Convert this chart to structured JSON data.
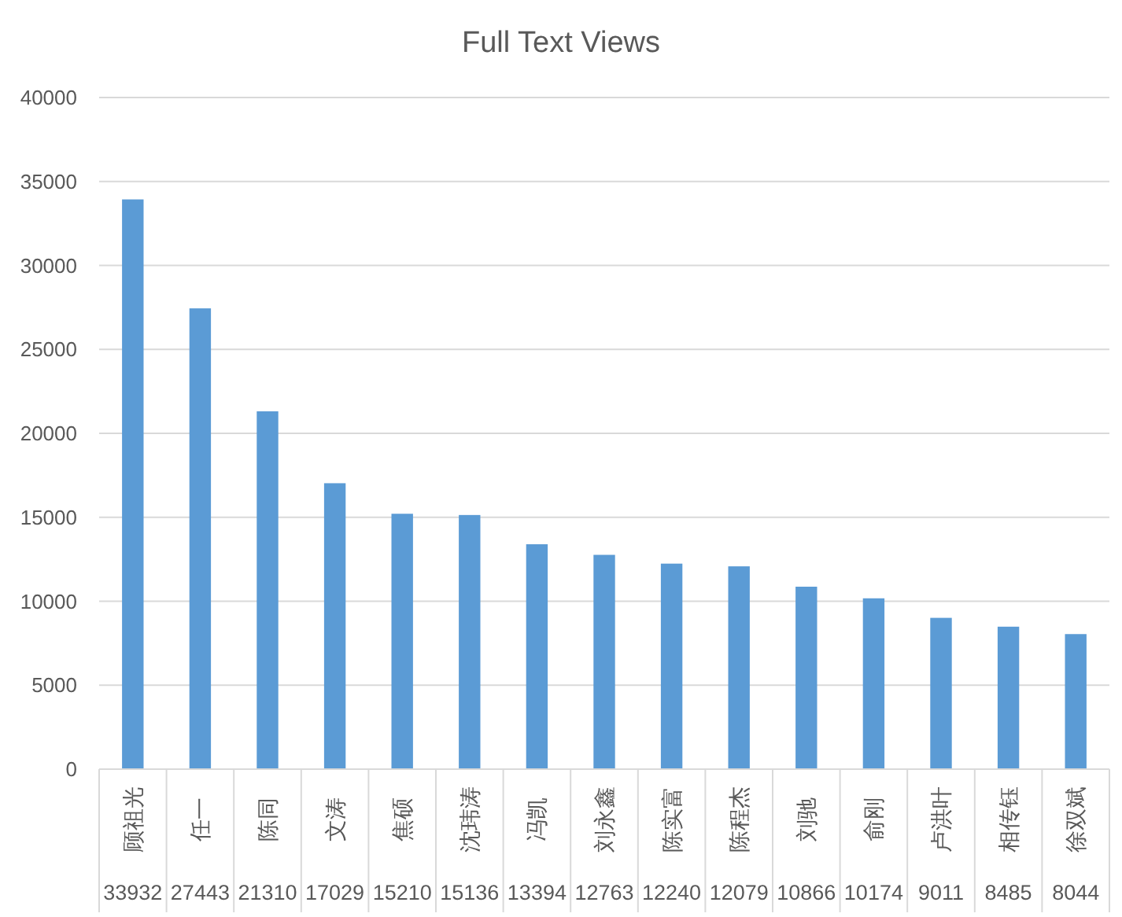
{
  "chart_data": {
    "type": "bar",
    "title": "Full Text Views",
    "categories": [
      "顾祖光",
      "任一",
      "陈同",
      "文涛",
      "焦硕",
      "沈玮涛",
      "冯凯",
      "刘永鑫",
      "陈实富",
      "陈程杰",
      "刘驰",
      "俞刚",
      "卢洪叶",
      "相传钰",
      "徐双斌"
    ],
    "values": [
      33932,
      27443,
      21310,
      17029,
      15210,
      15136,
      13394,
      12763,
      12240,
      12079,
      10866,
      10174,
      9011,
      8485,
      8044
    ],
    "color": "#5b9bd5",
    "ylim": [
      0,
      40000
    ],
    "yticks": [
      0,
      5000,
      10000,
      15000,
      20000,
      25000,
      30000,
      35000,
      40000
    ],
    "grid": "y",
    "data_labels": true
  }
}
